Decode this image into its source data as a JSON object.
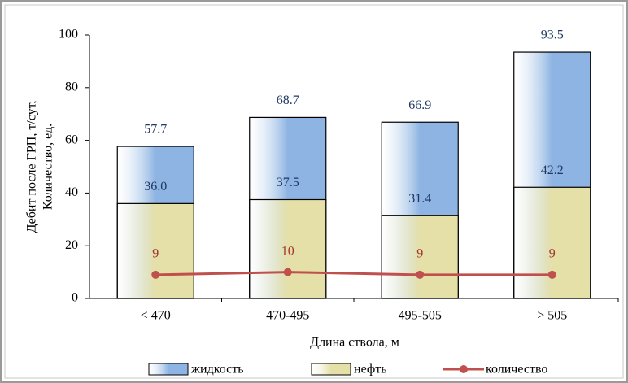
{
  "chart_data": {
    "type": "bar",
    "y_label": [
      "Дебит после ГРП, т/сут,",
      "Количество, ед."
    ],
    "x_label": "Длина ствола, м",
    "categories": [
      "< 470",
      "470-495",
      "495-505",
      "> 505"
    ],
    "series": [
      {
        "name": "жидкость",
        "type": "bar",
        "color": "#8db4e2",
        "values": [
          57.7,
          68.7,
          66.9,
          93.5
        ]
      },
      {
        "name": "нефть",
        "type": "bar",
        "color": "#e4e0a8",
        "values": [
          36,
          37.5,
          31.4,
          42.2
        ],
        "value_labels": [
          "36.0",
          "37.5",
          "31.4",
          "42.2"
        ]
      },
      {
        "name": "количество",
        "type": "line",
        "color": "#c0504d",
        "values": [
          9,
          10,
          9,
          9
        ]
      }
    ],
    "ylim": [
      0,
      100
    ],
    "yticks": [
      0,
      20,
      40,
      60,
      80,
      100
    ]
  }
}
